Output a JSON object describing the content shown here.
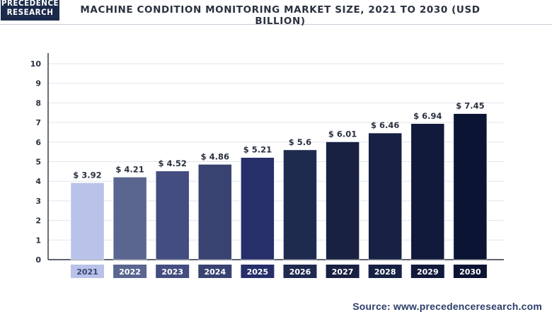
{
  "logo": {
    "line1": "PRECEDENCE",
    "line2": "RESEARCH"
  },
  "title": "MACHINE CONDITION MONITORING MARKET SIZE, 2021 TO 2030 (USD BILLION)",
  "source": {
    "label": "Source:",
    "url": "www.precedenceresearch.com"
  },
  "colors": {
    "bars": [
      "#b9c2e8",
      "#5a6690",
      "#444d80",
      "#384371",
      "#262f6a",
      "#1f2a4f",
      "#182142",
      "#162143",
      "#121a3b",
      "#0c1434"
    ],
    "header_border": "#c9ced6",
    "text": "#2b3140"
  },
  "chart_data": {
    "type": "bar",
    "categories": [
      "2021",
      "2022",
      "2023",
      "2024",
      "2025",
      "2026",
      "2027",
      "2028",
      "2029",
      "2030"
    ],
    "values": [
      3.92,
      4.21,
      4.52,
      4.86,
      5.21,
      5.6,
      6.01,
      6.46,
      6.94,
      7.45
    ],
    "labels": [
      "$ 3.92",
      "$ 4.21",
      "$ 4.52",
      "$ 4.86",
      "$ 5.21",
      "$ 5.6",
      "$ 6.01",
      "$ 6.46",
      "$ 6.94",
      "$ 7.45"
    ],
    "yticks": [
      "0",
      "1",
      "2",
      "3",
      "4",
      "5",
      "6",
      "7",
      "8",
      "9",
      "10"
    ],
    "ylim": [
      0,
      10
    ],
    "title": "MACHINE CONDITION MONITORING MARKET SIZE, 2021 TO 2030 (USD BILLION)",
    "xlabel": "",
    "ylabel": "",
    "grid": true,
    "legend": "none"
  }
}
